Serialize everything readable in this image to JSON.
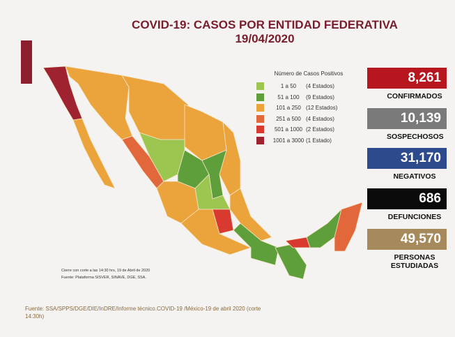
{
  "header": {
    "title": "COVID-19: CASOS POR ENTIDAD FEDERATIVA",
    "date": "19/04/2020"
  },
  "legend": {
    "title": "Número de Casos Positivos",
    "items": [
      {
        "range": "1 a 50",
        "count": "(4 Estados)",
        "color": "#9cc64f"
      },
      {
        "range": "51 a 100",
        "count": "(9 Estados)",
        "color": "#5f9f3b"
      },
      {
        "range": "101 a 250",
        "count": "(12 Estados)",
        "color": "#eba33c"
      },
      {
        "range": "251 a 500",
        "count": "(4 Estados)",
        "color": "#e2673b"
      },
      {
        "range": "501 a 1000",
        "count": "(2 Estados)",
        "color": "#d93a2f"
      },
      {
        "range": "1001 a 3000",
        "count": "(1 Estado)",
        "color": "#9e2230"
      }
    ]
  },
  "stats": [
    {
      "value": "8,261",
      "label": "CONFIRMADOS",
      "color": "#b8161f"
    },
    {
      "value": "10,139",
      "label": "SOSPECHOSOS",
      "color": "#7a7a7a"
    },
    {
      "value": "31,170",
      "label": "NEGATIVOS",
      "color": "#2c4a8c"
    },
    {
      "value": "686",
      "label": "DEFUNCIONES",
      "color": "#0a0a0a"
    },
    {
      "value": "49,570",
      "label": "PERSONAS ESTUDIADAS",
      "color": "#a78a5c"
    }
  ],
  "notes": {
    "cutoff": "Cierre con corte a las 14:30 hrs, 19 de Abril de 2020",
    "source": "Fuente: Plataforma SISVER, SINAVE, DGE, SSA."
  },
  "footer": "Fuente: SSA/SPPS/DGE/DIE/InDRE/Informe técnico.COVID-19 /México-19 de abril 2020 (corte 14:30h)"
}
